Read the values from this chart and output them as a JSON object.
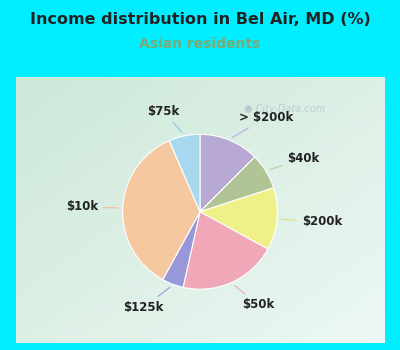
{
  "title": "Income distribution in Bel Air, MD (%)",
  "subtitle": "Asian residents",
  "title_fontsize": 11.5,
  "subtitle_fontsize": 10,
  "title_color": "#222222",
  "subtitle_color": "#77aa77",
  "bg_cyan": "#00eeff",
  "bg_panel_left": "#c8e8d8",
  "bg_panel_right": "#e8f4f0",
  "labels": [
    "> $200k",
    "$40k",
    "$200k",
    "$50k",
    "$125k",
    "$10k",
    "$75k"
  ],
  "values": [
    12.5,
    7.5,
    13.0,
    20.5,
    4.5,
    35.5,
    6.5
  ],
  "colors": [
    "#b8a8d4",
    "#b0c496",
    "#f0f088",
    "#f0a8b8",
    "#9898d8",
    "#f5c8a0",
    "#a8d8f0"
  ],
  "startangle": 90,
  "label_fontsize": 8.5,
  "label_color": "#222222",
  "line_color_map": {
    "> $200k": "#c0b0e0",
    "$40k": "#c0d0a0",
    "$200k": "#e0e080",
    "$50k": "#f0b0c0",
    "$125k": "#a0a0e0",
    "$10k": "#f0c0a0",
    "$75k": "#90c8e8"
  }
}
